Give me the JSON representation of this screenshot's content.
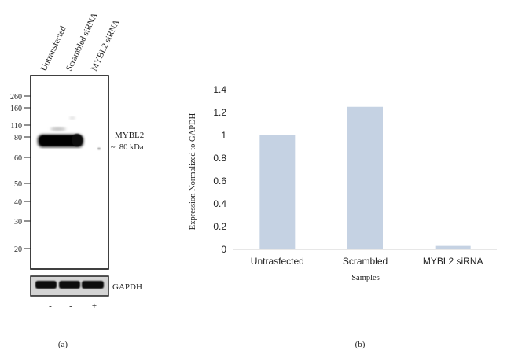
{
  "panel_a": {
    "label": "(a)",
    "lanes": [
      "Untransfected",
      "Scrambled siRNA",
      "MYBL2 siRNA"
    ],
    "markers": [
      "260",
      "160",
      "110",
      "80",
      "60",
      "50",
      "40",
      "30",
      "20"
    ],
    "band_label": "MYBL2",
    "band_size": "~  80 kDa",
    "loading_control": "GAPDH",
    "treatment": [
      "-",
      "-",
      "+"
    ]
  },
  "panel_b": {
    "label": "(b)"
  },
  "chart_data": {
    "type": "bar",
    "categories": [
      "Untrasfected",
      "Scrambled",
      "MYBL2 siRNA"
    ],
    "values": [
      1.0,
      1.25,
      0.03
    ],
    "xlabel": "Samples",
    "ylabel": "Expression Normalized to GAPDH",
    "ylim": [
      0,
      1.4
    ],
    "yticks": [
      "0",
      "0.2",
      "0.4",
      "0.6",
      "0.8",
      "1",
      "1.2",
      "1.4"
    ],
    "bar_color": "#c5d2e3",
    "grid": false,
    "legend": "none"
  }
}
